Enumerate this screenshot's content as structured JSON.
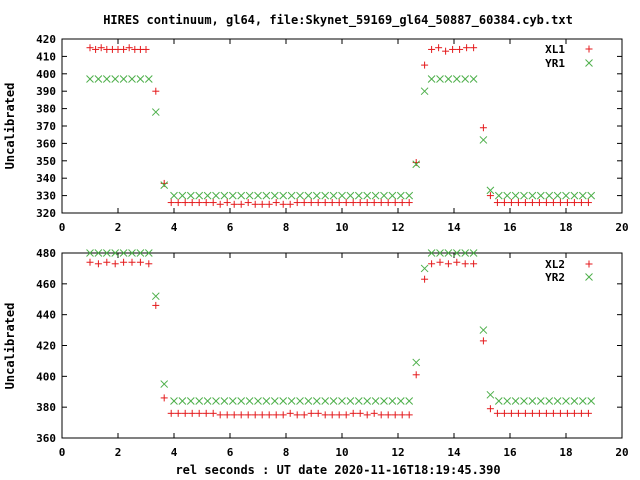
{
  "chart_data": {
    "title": "HIRES continuum, gl64, file:Skynet_59169_gl64_50887_60384.cyb.txt",
    "xlabel": "rel seconds : UT date 2020-11-16T18:19:45.390",
    "panels": [
      {
        "type": "scatter",
        "ylabel": "Uncalibrated",
        "xlim": [
          0,
          20
        ],
        "ylim": [
          320,
          420
        ],
        "xticks": [
          0,
          2,
          4,
          6,
          8,
          10,
          12,
          14,
          16,
          18,
          20
        ],
        "yticks": [
          320,
          330,
          340,
          350,
          360,
          370,
          380,
          390,
          400,
          410,
          420
        ],
        "grid": false,
        "legend_position": "top-right",
        "series": [
          {
            "name": "XL1",
            "marker": "plus",
            "color": "#e41a1c",
            "x": [
              1.0,
              1.2,
              1.4,
              1.6,
              1.8,
              2.0,
              2.2,
              2.4,
              2.6,
              2.8,
              3.0,
              3.35,
              3.65,
              3.9,
              4.15,
              4.4,
              4.65,
              4.9,
              5.15,
              5.4,
              5.65,
              5.9,
              6.15,
              6.4,
              6.65,
              6.9,
              7.15,
              7.4,
              7.65,
              7.9,
              8.15,
              8.4,
              8.65,
              8.9,
              9.15,
              9.4,
              9.65,
              9.9,
              10.15,
              10.4,
              10.65,
              10.9,
              11.15,
              11.4,
              11.65,
              11.9,
              12.15,
              12.4,
              12.65,
              12.95,
              13.2,
              13.45,
              13.7,
              13.95,
              14.2,
              14.45,
              14.7,
              15.05,
              15.3,
              15.55,
              15.8,
              16.05,
              16.3,
              16.55,
              16.8,
              17.05,
              17.3,
              17.55,
              17.8,
              18.05,
              18.3,
              18.55,
              18.8
            ],
            "y": [
              415,
              414,
              415,
              414,
              414,
              414,
              414,
              415,
              414,
              414,
              414,
              390,
              337,
              326,
              326,
              326,
              326,
              326,
              326,
              326,
              325,
              326,
              325,
              325,
              326,
              325,
              325,
              325,
              326,
              325,
              325,
              326,
              326,
              326,
              326,
              326,
              326,
              326,
              326,
              326,
              326,
              326,
              326,
              326,
              326,
              326,
              326,
              326,
              349,
              405,
              414,
              415,
              413,
              414,
              414,
              415,
              415,
              369,
              330,
              326,
              326,
              326,
              326,
              326,
              326,
              326,
              326,
              326,
              326,
              326,
              326,
              326,
              326
            ]
          },
          {
            "name": "YR1",
            "marker": "cross",
            "color": "#4daf4a",
            "x": [
              1.0,
              1.3,
              1.6,
              1.9,
              2.2,
              2.5,
              2.8,
              3.1,
              3.35,
              3.65,
              4.0,
              4.3,
              4.6,
              4.9,
              5.2,
              5.5,
              5.8,
              6.1,
              6.4,
              6.7,
              7.0,
              7.3,
              7.6,
              7.9,
              8.2,
              8.5,
              8.8,
              9.1,
              9.4,
              9.7,
              10.0,
              10.3,
              10.6,
              10.9,
              11.2,
              11.5,
              11.8,
              12.1,
              12.4,
              12.65,
              12.95,
              13.2,
              13.5,
              13.8,
              14.1,
              14.4,
              14.7,
              15.05,
              15.3,
              15.6,
              15.9,
              16.2,
              16.5,
              16.8,
              17.1,
              17.4,
              17.7,
              18.0,
              18.3,
              18.6,
              18.9
            ],
            "y": [
              397,
              397,
              397,
              397,
              397,
              397,
              397,
              397,
              378,
              336,
              330,
              330,
              330,
              330,
              330,
              330,
              330,
              330,
              330,
              330,
              330,
              330,
              330,
              330,
              330,
              330,
              330,
              330,
              330,
              330,
              330,
              330,
              330,
              330,
              330,
              330,
              330,
              330,
              330,
              348,
              390,
              397,
              397,
              397,
              397,
              397,
              397,
              362,
              333,
              330,
              330,
              330,
              330,
              330,
              330,
              330,
              330,
              330,
              330,
              330,
              330
            ]
          }
        ]
      },
      {
        "type": "scatter",
        "ylabel": "Uncalibrated",
        "xlim": [
          0,
          20
        ],
        "ylim": [
          360,
          480
        ],
        "xticks": [
          0,
          2,
          4,
          6,
          8,
          10,
          12,
          14,
          16,
          18,
          20
        ],
        "yticks": [
          360,
          380,
          400,
          420,
          440,
          460,
          480
        ],
        "grid": false,
        "legend_position": "top-right",
        "series": [
          {
            "name": "XL2",
            "marker": "plus",
            "color": "#e41a1c",
            "x": [
              1.0,
              1.3,
              1.6,
              1.9,
              2.2,
              2.5,
              2.8,
              3.1,
              3.35,
              3.65,
              3.9,
              4.15,
              4.4,
              4.65,
              4.9,
              5.15,
              5.4,
              5.65,
              5.9,
              6.15,
              6.4,
              6.65,
              6.9,
              7.15,
              7.4,
              7.65,
              7.9,
              8.15,
              8.4,
              8.65,
              8.9,
              9.15,
              9.4,
              9.65,
              9.9,
              10.15,
              10.4,
              10.65,
              10.9,
              11.15,
              11.4,
              11.65,
              11.9,
              12.15,
              12.4,
              12.65,
              12.95,
              13.2,
              13.5,
              13.8,
              14.1,
              14.4,
              14.7,
              15.05,
              15.3,
              15.55,
              15.8,
              16.05,
              16.3,
              16.55,
              16.8,
              17.05,
              17.3,
              17.55,
              17.8,
              18.05,
              18.3,
              18.55,
              18.8
            ],
            "y": [
              474,
              473,
              474,
              473,
              474,
              474,
              474,
              473,
              446,
              386,
              376,
              376,
              376,
              376,
              376,
              376,
              376,
              375,
              375,
              375,
              375,
              375,
              375,
              375,
              375,
              375,
              375,
              376,
              375,
              375,
              376,
              376,
              375,
              375,
              375,
              375,
              376,
              376,
              375,
              376,
              375,
              375,
              375,
              375,
              375,
              401,
              463,
              473,
              474,
              473,
              474,
              473,
              473,
              423,
              379,
              376,
              376,
              376,
              376,
              376,
              376,
              376,
              376,
              376,
              376,
              376,
              376,
              376,
              376
            ]
          },
          {
            "name": "YR2",
            "marker": "cross",
            "color": "#4daf4a",
            "x": [
              1.0,
              1.3,
              1.6,
              1.9,
              2.2,
              2.5,
              2.8,
              3.1,
              3.35,
              3.65,
              4.0,
              4.3,
              4.6,
              4.9,
              5.2,
              5.5,
              5.8,
              6.1,
              6.4,
              6.7,
              7.0,
              7.3,
              7.6,
              7.9,
              8.2,
              8.5,
              8.8,
              9.1,
              9.4,
              9.7,
              10.0,
              10.3,
              10.6,
              10.9,
              11.2,
              11.5,
              11.8,
              12.1,
              12.4,
              12.65,
              12.95,
              13.2,
              13.5,
              13.8,
              14.1,
              14.4,
              14.7,
              15.05,
              15.3,
              15.6,
              15.9,
              16.2,
              16.5,
              16.8,
              17.1,
              17.4,
              17.7,
              18.0,
              18.3,
              18.6,
              18.9
            ],
            "y": [
              480,
              480,
              480,
              480,
              480,
              480,
              480,
              480,
              452,
              395,
              384,
              384,
              384,
              384,
              384,
              384,
              384,
              384,
              384,
              384,
              384,
              384,
              384,
              384,
              384,
              384,
              384,
              384,
              384,
              384,
              384,
              384,
              384,
              384,
              384,
              384,
              384,
              384,
              384,
              409,
              470,
              480,
              480,
              480,
              480,
              480,
              480,
              430,
              388,
              384,
              384,
              384,
              384,
              384,
              384,
              384,
              384,
              384,
              384,
              384,
              384
            ]
          }
        ]
      }
    ]
  }
}
